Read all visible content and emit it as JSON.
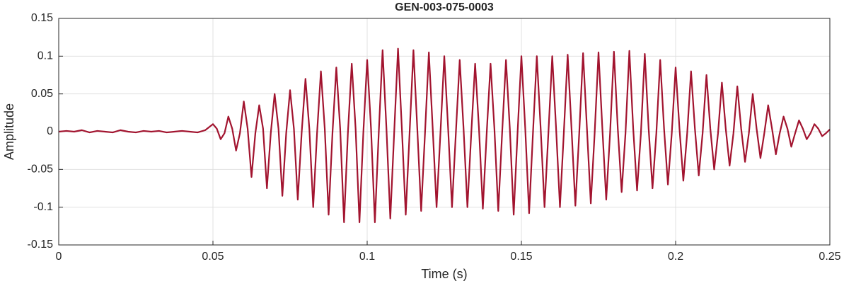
{
  "chart_data": {
    "type": "line",
    "title": "GEN-003-075-0003",
    "xlabel": "Time (s)",
    "ylabel": "Amplitude",
    "xlim": [
      0,
      0.25
    ],
    "xticks": [
      0,
      0.05,
      0.1,
      0.15,
      0.2,
      0.25
    ],
    "ylim": [
      -0.15,
      0.15
    ],
    "yticks": [
      -0.15,
      -0.1,
      -0.05,
      0,
      0.05,
      0.1,
      0.15
    ],
    "grid": true,
    "series": [
      {
        "color": "#a2142f",
        "x": [
          0,
          0.0025,
          0.005,
          0.0075,
          0.01,
          0.0125,
          0.015,
          0.0175,
          0.02,
          0.0225,
          0.025,
          0.0275,
          0.03,
          0.0325,
          0.035,
          0.0375,
          0.04,
          0.0425,
          0.045,
          0.0475,
          0.05,
          0.05125,
          0.0525,
          0.05375,
          0.055,
          0.05625,
          0.0575,
          0.05875,
          0.06,
          0.06125,
          0.0625,
          0.06375,
          0.065,
          0.06625,
          0.0675,
          0.06875,
          0.07,
          0.07125,
          0.0725,
          0.07375,
          0.075,
          0.07625,
          0.0775,
          0.07875,
          0.08,
          0.08125,
          0.0825,
          0.08375,
          0.085,
          0.08625,
          0.0875,
          0.08875,
          0.09,
          0.09125,
          0.0925,
          0.09375,
          0.095,
          0.09625,
          0.0975,
          0.09875,
          0.1,
          0.10125,
          0.1025,
          0.10375,
          0.105,
          0.10625,
          0.1075,
          0.10875,
          0.11,
          0.11125,
          0.1125,
          0.11375,
          0.115,
          0.11625,
          0.1175,
          0.11875,
          0.12,
          0.12125,
          0.1225,
          0.12375,
          0.125,
          0.12625,
          0.1275,
          0.12875,
          0.13,
          0.13125,
          0.1325,
          0.13375,
          0.135,
          0.13625,
          0.1375,
          0.13875,
          0.14,
          0.14125,
          0.1425,
          0.14375,
          0.145,
          0.14625,
          0.1475,
          0.14875,
          0.15,
          0.15125,
          0.1525,
          0.15375,
          0.155,
          0.15625,
          0.1575,
          0.15875,
          0.16,
          0.16125,
          0.1625,
          0.16375,
          0.165,
          0.16625,
          0.1675,
          0.16875,
          0.17,
          0.17125,
          0.1725,
          0.17375,
          0.175,
          0.17625,
          0.1775,
          0.17875,
          0.18,
          0.18125,
          0.1825,
          0.18375,
          0.185,
          0.18625,
          0.1875,
          0.18875,
          0.19,
          0.19125,
          0.1925,
          0.19375,
          0.195,
          0.19625,
          0.1975,
          0.19875,
          0.2,
          0.20125,
          0.2025,
          0.20375,
          0.205,
          0.20625,
          0.2075,
          0.20875,
          0.21,
          0.21125,
          0.2125,
          0.21375,
          0.215,
          0.21625,
          0.2175,
          0.21875,
          0.22,
          0.22125,
          0.2225,
          0.22375,
          0.225,
          0.22625,
          0.2275,
          0.22875,
          0.23,
          0.23125,
          0.2325,
          0.23375,
          0.235,
          0.23625,
          0.2375,
          0.23875,
          0.24,
          0.24125,
          0.2425,
          0.24375,
          0.245,
          0.24625,
          0.2475,
          0.24875,
          0.25
        ],
        "values": [
          0,
          0.001,
          0,
          0.002,
          -0.001,
          0.001,
          0,
          -0.001,
          0.002,
          0,
          -0.001,
          0.001,
          0,
          0.001,
          -0.001,
          0,
          0.001,
          0,
          -0.001,
          0.002,
          0.01,
          0.004,
          -0.01,
          -0.002,
          0.02,
          0.004,
          -0.025,
          -0.002,
          0.04,
          0.004,
          -0.06,
          -0.002,
          0.035,
          0.004,
          -0.075,
          -0.002,
          0.05,
          0.004,
          -0.085,
          -0.002,
          0.055,
          0.004,
          -0.09,
          -0.002,
          0.07,
          0.004,
          -0.1,
          -0.002,
          0.08,
          0.004,
          -0.11,
          -0.002,
          0.085,
          0.004,
          -0.12,
          -0.002,
          0.09,
          0.004,
          -0.12,
          -0.002,
          0.095,
          0.004,
          -0.12,
          -0.002,
          0.108,
          0.004,
          -0.115,
          -0.002,
          0.11,
          0.004,
          -0.11,
          -0.002,
          0.108,
          0.004,
          -0.105,
          -0.002,
          0.105,
          0.004,
          -0.1,
          -0.002,
          0.1,
          0.004,
          -0.1,
          -0.002,
          0.095,
          0.004,
          -0.1,
          -0.002,
          0.09,
          0.004,
          -0.102,
          -0.002,
          0.09,
          0.004,
          -0.105,
          -0.002,
          0.095,
          0.004,
          -0.11,
          -0.002,
          0.1,
          0.004,
          -0.108,
          -0.002,
          0.1,
          0.004,
          -0.1,
          -0.002,
          0.1,
          0.004,
          -0.1,
          -0.002,
          0.102,
          0.004,
          -0.098,
          -0.002,
          0.104,
          0.004,
          -0.095,
          -0.002,
          0.105,
          0.004,
          -0.09,
          -0.002,
          0.106,
          0.004,
          -0.08,
          -0.002,
          0.107,
          0.004,
          -0.078,
          -0.002,
          0.103,
          0.004,
          -0.075,
          -0.002,
          0.095,
          0.004,
          -0.07,
          -0.002,
          0.085,
          0.004,
          -0.065,
          -0.002,
          0.08,
          0.004,
          -0.058,
          -0.002,
          0.075,
          0.004,
          -0.05,
          -0.002,
          0.065,
          0.004,
          -0.045,
          -0.002,
          0.06,
          0.004,
          -0.04,
          -0.002,
          0.05,
          0.004,
          -0.035,
          -0.002,
          0.035,
          0.004,
          -0.03,
          -0.002,
          0.02,
          0.004,
          -0.02,
          -0.002,
          0.015,
          0.004,
          -0.01,
          -0.002,
          0.01,
          0.004,
          -0.006,
          -0.002,
          0.003
        ]
      }
    ]
  }
}
